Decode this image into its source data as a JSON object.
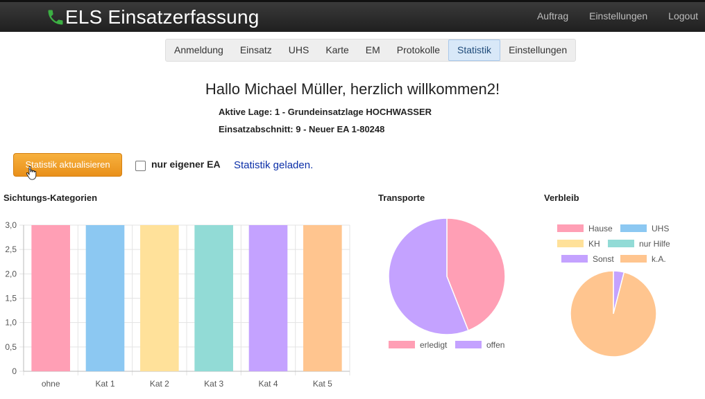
{
  "header": {
    "title": "ELS Einsatzerfassung",
    "nav": [
      "Auftrag",
      "Einstellungen",
      "Logout"
    ]
  },
  "tabs": {
    "items": [
      "Anmeldung",
      "Einsatz",
      "UHS",
      "Karte",
      "EM",
      "Protokolle",
      "Statistik",
      "Einstellungen"
    ],
    "active": "Statistik"
  },
  "greeting": "Hallo Michael Müller, herzlich willkommen2!",
  "lage": "Aktive Lage: 1 - Grundeinsatzlage HOCHWASSER",
  "abschnitt": "Einsatzabschnitt: 9 - Neuer EA 1-80248",
  "controls": {
    "refresh_label": "Statistik aktualisieren",
    "own_ea_label": "nur eigener EA",
    "own_ea_checked": false,
    "status_text": "Statistik geladen."
  },
  "chart_data": [
    {
      "type": "bar",
      "title": "Sichtungs-Kategorien",
      "categories": [
        "ohne",
        "Kat 1",
        "Kat 2",
        "Kat 3",
        "Kat 4",
        "Kat 5"
      ],
      "values": [
        3,
        3,
        3,
        3,
        3,
        3
      ],
      "colors": [
        "#ff9fb5",
        "#8cc8f2",
        "#ffe19a",
        "#92dbd6",
        "#c4a2ff",
        "#ffc58f"
      ],
      "yticks": [
        "0",
        "0,5",
        "1,0",
        "1,5",
        "2,0",
        "2,5",
        "3,0"
      ],
      "ylim": [
        0,
        3
      ],
      "grid": true
    },
    {
      "type": "pie",
      "title": "Transporte",
      "labels": [
        "erledigt",
        "offen"
      ],
      "values": [
        44,
        56
      ],
      "colors": [
        "#ff9fb5",
        "#c4a2ff"
      ],
      "legend": "bottom"
    },
    {
      "type": "pie",
      "title": "Verbleib",
      "labels": [
        "Hause",
        "UHS",
        "KH",
        "nur Hilfe",
        "Sonst",
        "k.A."
      ],
      "values": [
        0,
        0,
        0,
        0,
        4,
        96
      ],
      "colors": [
        "#ff9fb5",
        "#8cc8f2",
        "#ffe19a",
        "#92dbd6",
        "#c4a2ff",
        "#ffc58f"
      ],
      "legend": "top"
    }
  ]
}
